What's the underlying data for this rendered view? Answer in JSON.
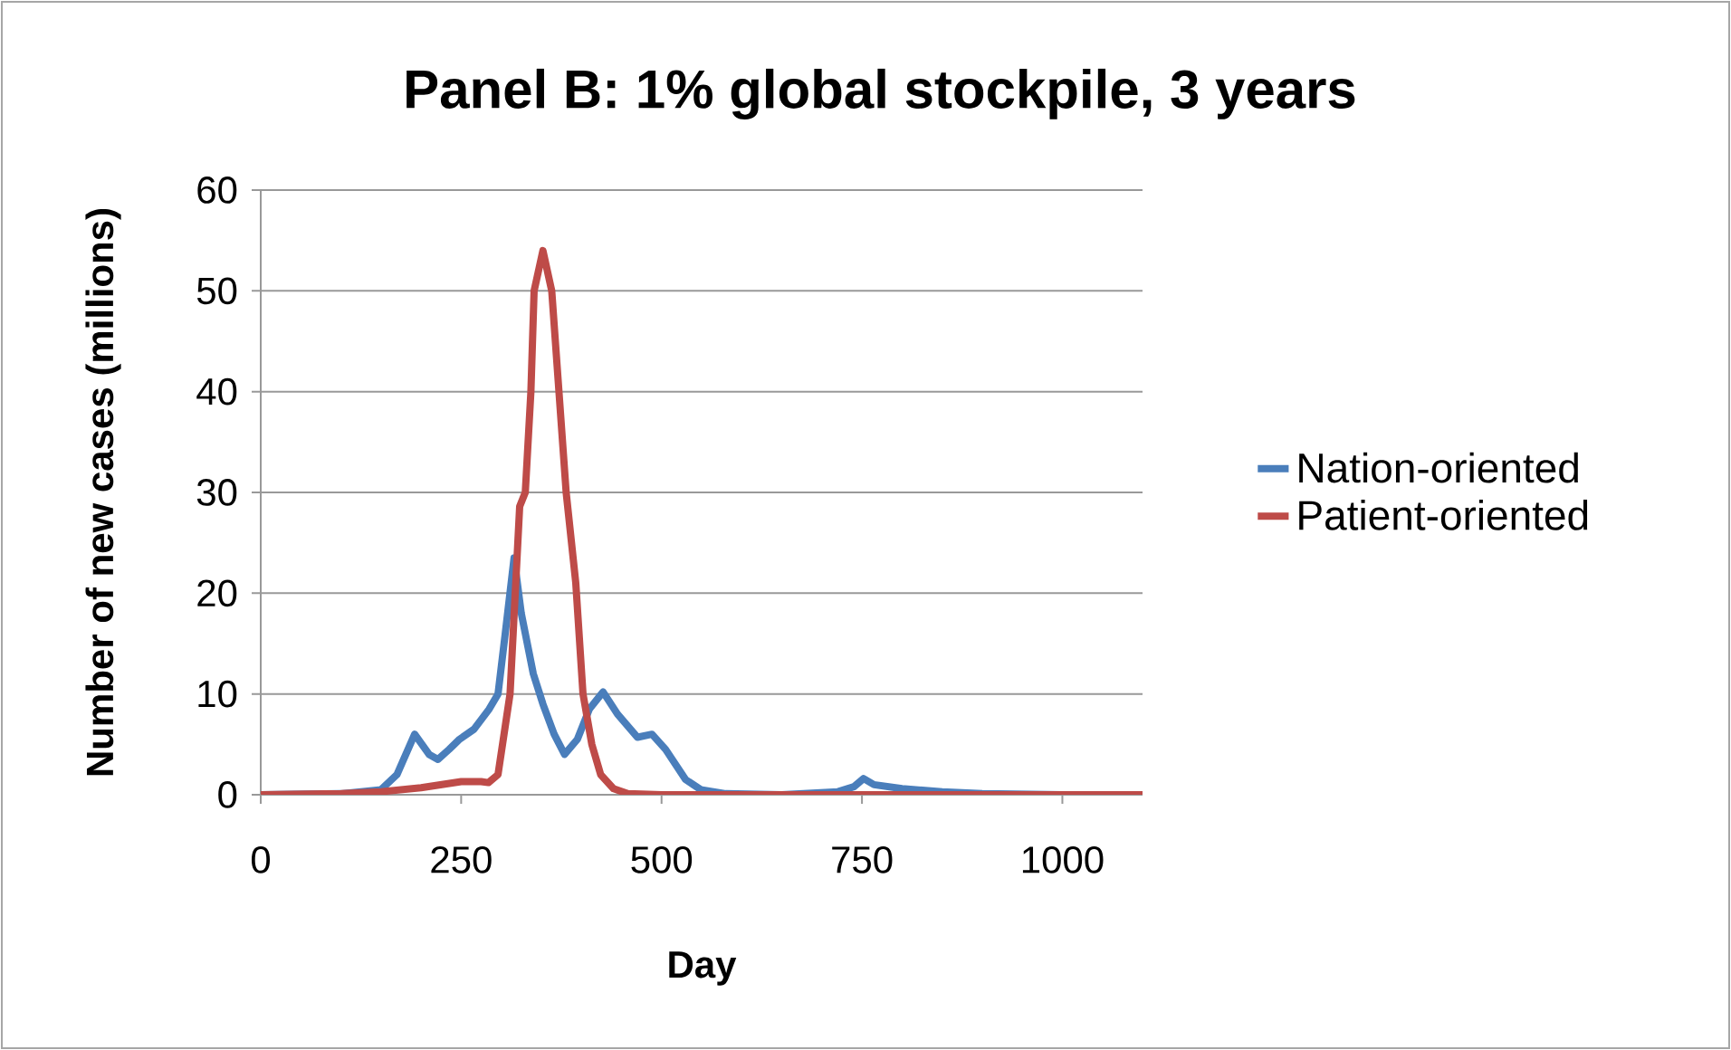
{
  "chart_data": {
    "type": "line",
    "title": "Panel B: 1% global stockpile, 3 years",
    "xlabel": "Day",
    "ylabel": "Number of new cases (millions)",
    "xlim": [
      0,
      1100
    ],
    "xticks": [
      0,
      250,
      500,
      750,
      1000
    ],
    "ylim": [
      0,
      60
    ],
    "yticks": [
      0,
      10,
      20,
      30,
      40,
      50,
      60
    ],
    "grid": "y",
    "legend": "right",
    "marker": "none",
    "line_style": "solid",
    "series": [
      {
        "name": "Nation-oriented",
        "color": "#4a7ebb",
        "x": [
          0,
          100,
          150,
          170,
          192,
          210,
          221,
          235,
          248,
          266,
          285,
          296,
          305,
          316,
          325,
          340,
          352,
          366,
          379,
          395,
          410,
          427,
          445,
          470,
          488,
          505,
          530,
          549,
          580,
          650,
          720,
          740,
          752,
          765,
          800,
          850,
          900,
          1000,
          1100
        ],
        "values": [
          0,
          0.1,
          0.5,
          2,
          6,
          4,
          3.5,
          4.5,
          5.5,
          6.5,
          8.5,
          10,
          16,
          23.5,
          18,
          12,
          9,
          6,
          4,
          5.5,
          8.5,
          10.2,
          8,
          5.7,
          6,
          4.5,
          1.5,
          0.5,
          0.1,
          0,
          0.3,
          0.8,
          1.6,
          1,
          0.6,
          0.3,
          0.1,
          0,
          0
        ]
      },
      {
        "name": "Patient-oriented",
        "color": "#be4b48",
        "x": [
          0,
          100,
          150,
          200,
          250,
          275,
          284,
          296,
          311,
          323,
          330,
          337,
          341,
          352,
          363,
          372,
          381,
          393,
          402,
          413,
          424,
          440,
          458,
          500,
          600,
          800,
          1000,
          1100
        ],
        "values": [
          0,
          0.1,
          0.3,
          0.7,
          1.3,
          1.3,
          1.2,
          2,
          10,
          28.6,
          30,
          40,
          50,
          54,
          50,
          40,
          30,
          21,
          10,
          5,
          2,
          0.6,
          0.1,
          0,
          0,
          0,
          0,
          0
        ]
      }
    ]
  }
}
